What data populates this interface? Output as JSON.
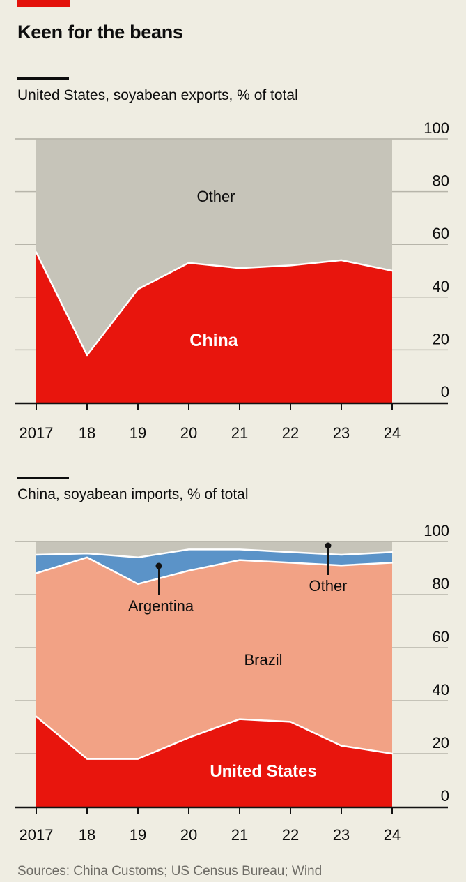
{
  "colors": {
    "background": "#EFEDE2",
    "tag": "#E3120B",
    "red": "#E8150D",
    "salmon": "#F2A285",
    "blue": "#5B93C8",
    "grey": "#C6C4B9",
    "grid": "#B7B5AA",
    "axis": "#121212",
    "text": "#0D0D0D",
    "muted": "#6E6C66",
    "separator": "#FFFFFF"
  },
  "header": {
    "title": "Keen for the beans"
  },
  "footer": {
    "sources": "Sources: China Customs; US Census Bureau; Wind"
  },
  "chart_data": [
    {
      "type": "area",
      "stacked": true,
      "subtitle": "United States, soyabean exports, % of total",
      "categories": [
        "2017",
        "18",
        "19",
        "20",
        "21",
        "22",
        "23",
        "24"
      ],
      "unit": "%",
      "ylim": [
        0,
        100
      ],
      "yticks": [
        0,
        20,
        40,
        60,
        80,
        100
      ],
      "grid": true,
      "legend": "inline-labels",
      "series": [
        {
          "name": "China",
          "color_key": "red",
          "values": [
            57,
            18,
            43,
            53,
            51,
            52,
            54,
            50
          ]
        },
        {
          "name": "Other",
          "color_key": "grey",
          "values": [
            43,
            82,
            57,
            47,
            49,
            48,
            46,
            50
          ]
        }
      ],
      "annotations": [
        {
          "text": "China",
          "style": "light-on-dark",
          "callout": false
        },
        {
          "text": "Other",
          "style": "dark",
          "callout": false
        }
      ]
    },
    {
      "type": "area",
      "stacked": true,
      "subtitle": "China, soyabean imports, % of total",
      "categories": [
        "2017",
        "18",
        "19",
        "20",
        "21",
        "22",
        "23",
        "24"
      ],
      "unit": "%",
      "ylim": [
        0,
        100
      ],
      "yticks": [
        0,
        20,
        40,
        60,
        80,
        100
      ],
      "grid": true,
      "legend": "inline-labels",
      "series": [
        {
          "name": "United States",
          "color_key": "red",
          "values": [
            34,
            18,
            18,
            26,
            33,
            32,
            23,
            20
          ]
        },
        {
          "name": "Brazil",
          "color_key": "salmon",
          "values": [
            54,
            76,
            66,
            63,
            60,
            60,
            68,
            72
          ]
        },
        {
          "name": "Argentina",
          "color_key": "blue",
          "values": [
            7,
            1.5,
            10,
            8,
            4,
            4,
            4,
            4
          ]
        },
        {
          "name": "Other",
          "color_key": "grey",
          "values": [
            5,
            4.5,
            6,
            3,
            3,
            4,
            5,
            4
          ]
        }
      ],
      "annotations": [
        {
          "text": "United States",
          "style": "light-on-dark",
          "callout": false
        },
        {
          "text": "Brazil",
          "style": "dark",
          "callout": false
        },
        {
          "text": "Argentina",
          "style": "dark",
          "callout": true
        },
        {
          "text": "Other",
          "style": "dark",
          "callout": true
        }
      ]
    }
  ]
}
